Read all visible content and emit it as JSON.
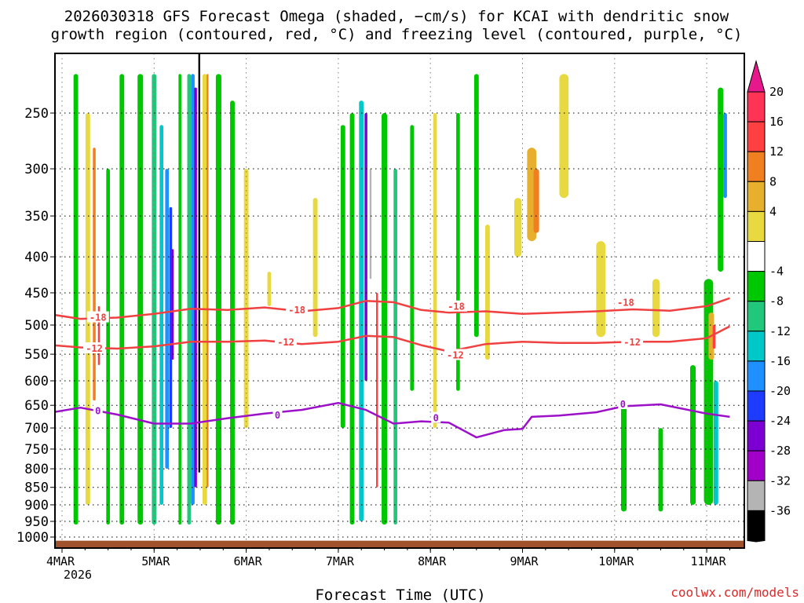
{
  "chart_data": {
    "type": "heatmap",
    "title_line1": "2026030318 GFS Forecast Omega (shaded, −cm/s) for KCAI with dendritic snow",
    "title_line2": "growth region (contoured, red, °C) and freezing level (contoured, purple, °C)",
    "xlabel": "Forecast Time (UTC)",
    "x_ticks": [
      {
        "label": "4MAR",
        "label2": "2026",
        "day": 4
      },
      {
        "label": "5MAR",
        "day": 5
      },
      {
        "label": "6MAR",
        "day": 6
      },
      {
        "label": "7MAR",
        "day": 7
      },
      {
        "label": "8MAR",
        "day": 8
      },
      {
        "label": "9MAR",
        "day": 9
      },
      {
        "label": "10MAR",
        "day": 10
      },
      {
        "label": "11MAR",
        "day": 11
      }
    ],
    "x_range_days": [
      3.75,
      11.25
    ],
    "y_ticks": [
      250,
      300,
      350,
      400,
      450,
      500,
      550,
      600,
      650,
      700,
      750,
      800,
      850,
      900,
      950,
      1000
    ],
    "y_range_hpa": [
      200,
      1020
    ],
    "colorbar": {
      "labels": [
        "20",
        "16",
        "12",
        "8",
        "4",
        "-4",
        "-8",
        "-12",
        "-16",
        "-20",
        "-24",
        "-28",
        "-32",
        "-36"
      ],
      "colors_top_to_bottom": [
        "#ff3355",
        "#ff4040",
        "#f07f1f",
        "#e6af2d",
        "#e8d940",
        "#ffffff",
        "#00c800",
        "#21c77a",
        "#00c8c8",
        "#1e90ff",
        "#1e3cff",
        "#7d00d2",
        "#a000c8",
        "#b4b4b4",
        "#000000"
      ],
      "top_arrow_color": "#e6188c",
      "bottom_arrow_color": "#000000"
    },
    "contours": [
      {
        "name": "dgz-top",
        "level": -18,
        "label": "-18",
        "color": "#f04040",
        "x": [
          3.75,
          4.2,
          4.6,
          5.0,
          5.4,
          5.8,
          6.2,
          6.6,
          7.0,
          7.3,
          7.6,
          7.9,
          8.2,
          8.6,
          9.0,
          9.4,
          9.8,
          10.2,
          10.6,
          11.0,
          11.25
        ],
        "p": [
          480,
          490,
          488,
          482,
          474,
          476,
          472,
          478,
          473,
          462,
          464,
          476,
          480,
          478,
          482,
          480,
          478,
          475,
          477,
          470,
          458
        ]
      },
      {
        "name": "dgz-bottom",
        "level": -12,
        "label": "-12",
        "color": "#f04040",
        "x": [
          3.75,
          4.2,
          4.6,
          5.0,
          5.4,
          5.8,
          6.2,
          6.6,
          7.0,
          7.3,
          7.6,
          7.9,
          8.2,
          8.6,
          9.0,
          9.4,
          9.8,
          10.2,
          10.6,
          11.0,
          11.25
        ],
        "p": [
          532,
          538,
          540,
          536,
          528,
          528,
          526,
          532,
          528,
          518,
          520,
          534,
          545,
          532,
          528,
          530,
          530,
          528,
          528,
          522,
          502
        ]
      },
      {
        "name": "freezing-level",
        "level": 0,
        "label": "0",
        "color": "#9b10c8",
        "x": [
          3.75,
          4.2,
          4.6,
          5.0,
          5.4,
          5.8,
          6.2,
          6.6,
          7.0,
          7.3,
          7.6,
          7.9,
          8.2,
          8.5,
          8.8,
          9.0,
          9.1,
          9.4,
          9.8,
          10.1,
          10.5,
          11.0,
          11.25
        ],
        "p": [
          670,
          655,
          670,
          690,
          690,
          678,
          668,
          660,
          645,
          660,
          690,
          685,
          688,
          722,
          705,
          702,
          675,
          672,
          665,
          652,
          648,
          668,
          675
        ]
      }
    ],
    "contour_labels": [
      {
        "text": "-18",
        "x": 4.39,
        "p": 488
      },
      {
        "text": "-18",
        "x": 6.55,
        "p": 476
      },
      {
        "text": "-18",
        "x": 8.28,
        "p": 471
      },
      {
        "text": "-18",
        "x": 10.12,
        "p": 465
      },
      {
        "text": "-12",
        "x": 4.35,
        "p": 540
      },
      {
        "text": "-12",
        "x": 6.43,
        "p": 529
      },
      {
        "text": "-12",
        "x": 8.27,
        "p": 552
      },
      {
        "text": "-12",
        "x": 10.19,
        "p": 529
      },
      {
        "text": "0",
        "x": 4.39,
        "p": 662
      },
      {
        "text": "0",
        "x": 6.34,
        "p": 672
      },
      {
        "text": "0",
        "x": 8.06,
        "p": 678
      },
      {
        "text": "0",
        "x": 10.09,
        "p": 648
      }
    ],
    "omega_features": [
      {
        "x": 4.15,
        "width_days": 0.05,
        "p_top": 220,
        "p_bot": 960,
        "color": "#00c800"
      },
      {
        "x": 4.28,
        "width_days": 0.05,
        "p_top": 250,
        "p_bot": 900,
        "color": "#e8d940"
      },
      {
        "x": 4.35,
        "width_days": 0.03,
        "p_top": 280,
        "p_bot": 640,
        "color": "#f07f1f"
      },
      {
        "x": 4.4,
        "width_days": 0.02,
        "p_top": 470,
        "p_bot": 570,
        "color": "#ff4040"
      },
      {
        "x": 4.5,
        "width_days": 0.04,
        "p_top": 300,
        "p_bot": 960,
        "color": "#00c800"
      },
      {
        "x": 4.65,
        "width_days": 0.05,
        "p_top": 220,
        "p_bot": 960,
        "color": "#00c800"
      },
      {
        "x": 4.85,
        "width_days": 0.06,
        "p_top": 220,
        "p_bot": 960,
        "color": "#00c800"
      },
      {
        "x": 5.0,
        "width_days": 0.05,
        "p_top": 220,
        "p_bot": 960,
        "color": "#21c77a"
      },
      {
        "x": 5.08,
        "width_days": 0.04,
        "p_top": 260,
        "p_bot": 900,
        "color": "#00c8c8"
      },
      {
        "x": 5.14,
        "width_days": 0.04,
        "p_top": 300,
        "p_bot": 800,
        "color": "#1e90ff"
      },
      {
        "x": 5.18,
        "width_days": 0.03,
        "p_top": 340,
        "p_bot": 700,
        "color": "#1e3cff"
      },
      {
        "x": 5.2,
        "width_days": 0.025,
        "p_top": 390,
        "p_bot": 560,
        "color": "#7d00d2"
      },
      {
        "x": 5.28,
        "width_days": 0.03,
        "p_top": 220,
        "p_bot": 960,
        "color": "#00c800"
      },
      {
        "x": 5.38,
        "width_days": 0.04,
        "p_top": 220,
        "p_bot": 960,
        "color": "#21c77a"
      },
      {
        "x": 5.42,
        "width_days": 0.04,
        "p_top": 220,
        "p_bot": 900,
        "color": "#1e90ff"
      },
      {
        "x": 5.45,
        "width_days": 0.03,
        "p_top": 230,
        "p_bot": 850,
        "color": "#7d00d2"
      },
      {
        "x": 5.49,
        "width_days": 0.02,
        "p_top": 200,
        "p_bot": 810,
        "color": "#000000"
      },
      {
        "x": 5.55,
        "width_days": 0.05,
        "p_top": 220,
        "p_bot": 900,
        "color": "#e8d940"
      },
      {
        "x": 5.58,
        "width_days": 0.02,
        "p_top": 220,
        "p_bot": 850,
        "color": "#f07f1f"
      },
      {
        "x": 5.7,
        "width_days": 0.06,
        "p_top": 220,
        "p_bot": 960,
        "color": "#00c800"
      },
      {
        "x": 5.85,
        "width_days": 0.05,
        "p_top": 240,
        "p_bot": 960,
        "color": "#00c800"
      },
      {
        "x": 6.0,
        "width_days": 0.05,
        "p_top": 300,
        "p_bot": 700,
        "color": "#e8d940"
      },
      {
        "x": 6.25,
        "width_days": 0.04,
        "p_top": 420,
        "p_bot": 470,
        "color": "#e8d940"
      },
      {
        "x": 6.75,
        "width_days": 0.05,
        "p_top": 330,
        "p_bot": 520,
        "color": "#e8d940"
      },
      {
        "x": 7.05,
        "width_days": 0.05,
        "p_top": 260,
        "p_bot": 700,
        "color": "#00c800"
      },
      {
        "x": 7.15,
        "width_days": 0.05,
        "p_top": 250,
        "p_bot": 960,
        "color": "#00c800"
      },
      {
        "x": 7.25,
        "width_days": 0.05,
        "p_top": 240,
        "p_bot": 950,
        "color": "#00c8c8"
      },
      {
        "x": 7.3,
        "width_days": 0.03,
        "p_top": 250,
        "p_bot": 600,
        "color": "#7d00d2"
      },
      {
        "x": 7.35,
        "width_days": 0.02,
        "p_top": 300,
        "p_bot": 430,
        "color": "#b4b4b4"
      },
      {
        "x": 7.42,
        "width_days": 0.02,
        "p_top": 450,
        "p_bot": 850,
        "color": "#ff4040"
      },
      {
        "x": 7.5,
        "width_days": 0.06,
        "p_top": 250,
        "p_bot": 960,
        "color": "#00c800"
      },
      {
        "x": 7.62,
        "width_days": 0.04,
        "p_top": 300,
        "p_bot": 960,
        "color": "#21c77a"
      },
      {
        "x": 7.8,
        "width_days": 0.04,
        "p_top": 260,
        "p_bot": 620,
        "color": "#00c800"
      },
      {
        "x": 8.05,
        "width_days": 0.04,
        "p_top": 250,
        "p_bot": 700,
        "color": "#e8d940"
      },
      {
        "x": 8.3,
        "width_days": 0.04,
        "p_top": 250,
        "p_bot": 620,
        "color": "#00c800"
      },
      {
        "x": 8.5,
        "width_days": 0.05,
        "p_top": 220,
        "p_bot": 520,
        "color": "#00c800"
      },
      {
        "x": 8.62,
        "width_days": 0.05,
        "p_top": 360,
        "p_bot": 560,
        "color": "#e8d940"
      },
      {
        "x": 8.95,
        "width_days": 0.08,
        "p_top": 330,
        "p_bot": 400,
        "color": "#e8d940"
      },
      {
        "x": 9.1,
        "width_days": 0.1,
        "p_top": 280,
        "p_bot": 380,
        "color": "#e6af2d"
      },
      {
        "x": 9.15,
        "width_days": 0.06,
        "p_top": 300,
        "p_bot": 370,
        "color": "#f07f1f"
      },
      {
        "x": 9.45,
        "width_days": 0.1,
        "p_top": 220,
        "p_bot": 330,
        "color": "#e8d940"
      },
      {
        "x": 9.85,
        "width_days": 0.1,
        "p_top": 380,
        "p_bot": 520,
        "color": "#e8d940"
      },
      {
        "x": 10.1,
        "width_days": 0.06,
        "p_top": 650,
        "p_bot": 920,
        "color": "#00c800"
      },
      {
        "x": 10.45,
        "width_days": 0.08,
        "p_top": 430,
        "p_bot": 520,
        "color": "#e8d940"
      },
      {
        "x": 10.5,
        "width_days": 0.05,
        "p_top": 700,
        "p_bot": 920,
        "color": "#00c800"
      },
      {
        "x": 10.85,
        "width_days": 0.06,
        "p_top": 570,
        "p_bot": 900,
        "color": "#00c800"
      },
      {
        "x": 11.02,
        "width_days": 0.1,
        "p_top": 430,
        "p_bot": 900,
        "color": "#00c800"
      },
      {
        "x": 11.05,
        "width_days": 0.06,
        "p_top": 480,
        "p_bot": 560,
        "color": "#e6af2d"
      },
      {
        "x": 11.08,
        "width_days": 0.03,
        "p_top": 500,
        "p_bot": 540,
        "color": "#ff4040"
      },
      {
        "x": 11.1,
        "width_days": 0.05,
        "p_top": 600,
        "p_bot": 900,
        "color": "#00c8c8"
      },
      {
        "x": 11.15,
        "width_days": 0.06,
        "p_top": 230,
        "p_bot": 420,
        "color": "#00c800"
      },
      {
        "x": 11.2,
        "width_days": 0.04,
        "p_top": 250,
        "p_bot": 330,
        "color": "#1e90ff"
      }
    ],
    "surface_fill_color": "#a0522d",
    "credit": "coolwx.com/models"
  }
}
